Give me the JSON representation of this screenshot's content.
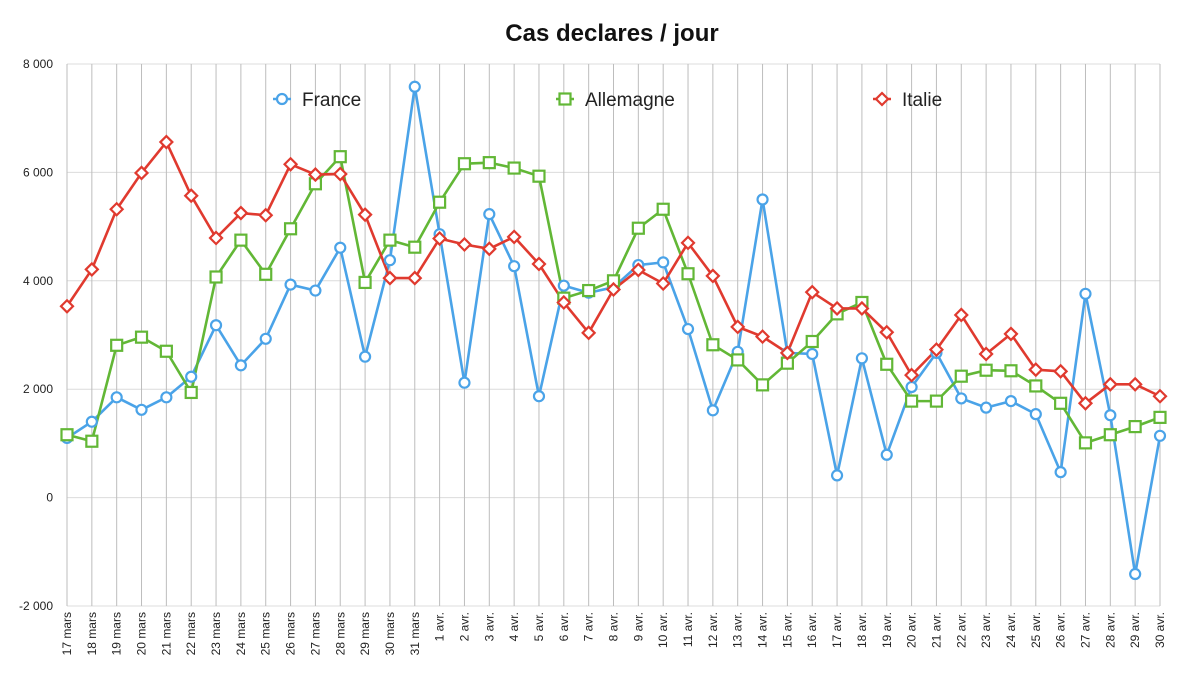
{
  "chart_data": {
    "type": "line",
    "title": "Cas declares / jour",
    "xlabel": "",
    "ylabel": "",
    "ylim": [
      -2000,
      8000
    ],
    "yticks": [
      -2000,
      0,
      2000,
      4000,
      6000,
      8000
    ],
    "ytick_labels": [
      "-2 000",
      "0",
      "2 000",
      "4 000",
      "6 000",
      "8 000"
    ],
    "grid": true,
    "legend_position": "top",
    "categories": [
      "17 mars",
      "18 mars",
      "19 mars",
      "20 mars",
      "21 mars",
      "22 mars",
      "23 mars",
      "24 mars",
      "25 mars",
      "26 mars",
      "27 mars",
      "28 mars",
      "29 mars",
      "30 mars",
      "31 mars",
      "1 avr.",
      "2 avr.",
      "3 avr.",
      "4 avr.",
      "5 avr.",
      "6 avr.",
      "7 avr.",
      "8 avr.",
      "9 avr.",
      "10 avr.",
      "11 avr.",
      "12 avr.",
      "13 avr.",
      "14 avr.",
      "15 avr.",
      "16 avr.",
      "17 avr.",
      "18 avr.",
      "19 avr.",
      "20 avr.",
      "21 avr.",
      "22 avr.",
      "23 avr.",
      "24 avr.",
      "25 avr.",
      "26 avr.",
      "27 avr.",
      "28 avr.",
      "29 avr.",
      "30 avr."
    ],
    "series": [
      {
        "name": "France",
        "color": "#4aa3e8",
        "marker": "circle",
        "values": [
          1100,
          1400,
          1850,
          1620,
          1850,
          2230,
          3180,
          2440,
          2930,
          3930,
          3820,
          4610,
          2600,
          4380,
          7580,
          4860,
          2120,
          5230,
          4270,
          1870,
          3910,
          3780,
          3880,
          4290,
          4340,
          3110,
          1610,
          2690,
          5500,
          2670,
          2650,
          410,
          2570,
          790,
          2040,
          2670,
          1830,
          1660,
          1780,
          1540,
          470,
          3760,
          1520,
          -1410,
          1140
        ]
      },
      {
        "name": "Allemagne",
        "color": "#62b736",
        "marker": "square",
        "values": [
          1160,
          1040,
          2810,
          2960,
          2700,
          1940,
          4070,
          4750,
          4120,
          4960,
          5790,
          6290,
          3970,
          4750,
          4620,
          5450,
          6160,
          6180,
          6080,
          5930,
          3680,
          3820,
          4000,
          4970,
          5320,
          4130,
          2820,
          2540,
          2080,
          2480,
          2880,
          3390,
          3600,
          2460,
          1780,
          1780,
          2240,
          2350,
          2340,
          2060,
          1740,
          1010,
          1160,
          1310,
          1480
        ]
      },
      {
        "name": "Italie",
        "color": "#e03a2f",
        "marker": "diamond",
        "values": [
          3530,
          4210,
          5320,
          5990,
          6560,
          5570,
          4790,
          5250,
          5210,
          6150,
          5960,
          5970,
          5220,
          4050,
          4050,
          4780,
          4670,
          4590,
          4810,
          4310,
          3600,
          3040,
          3840,
          4200,
          3950,
          4700,
          4090,
          3150,
          2970,
          2670,
          3790,
          3490,
          3490,
          3050,
          2260,
          2730,
          3370,
          2650,
          3020,
          2360,
          2330,
          1740,
          2090,
          2090,
          1870
        ]
      }
    ]
  }
}
